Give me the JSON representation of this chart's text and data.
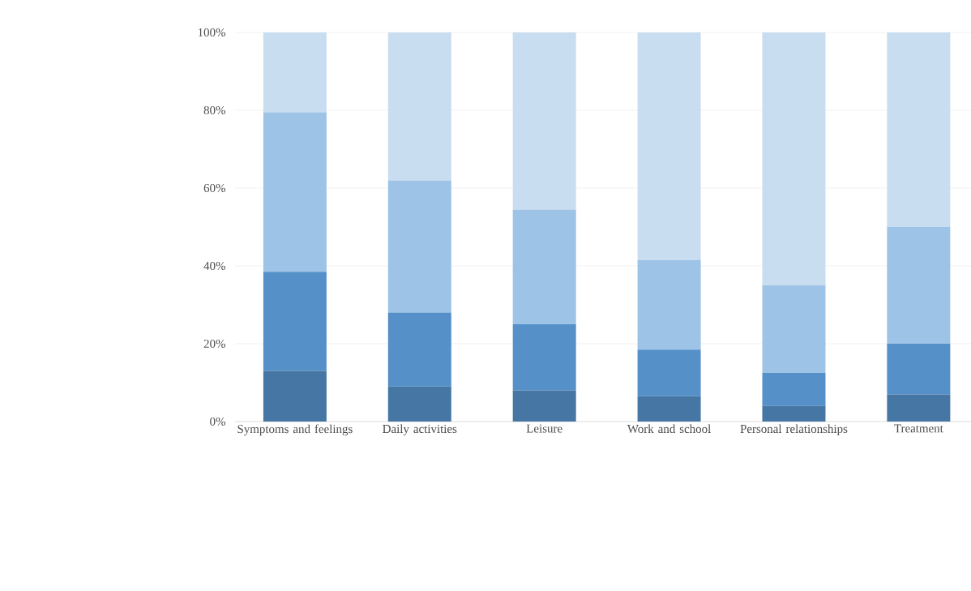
{
  "chart_data": {
    "type": "bar",
    "stacked": true,
    "categories": [
      "Symptoms and feelings",
      "Daily activities",
      "Leisure",
      "Work and school",
      "Personal relationships",
      "Treatment"
    ],
    "series": [
      {
        "color": "#4677a4",
        "values": [
          13,
          9,
          8,
          6.5,
          4,
          7
        ]
      },
      {
        "color": "#5590c8",
        "values": [
          25.5,
          19,
          17,
          12,
          8.5,
          13
        ]
      },
      {
        "color": "#9dc3e6",
        "values": [
          41,
          34,
          29.5,
          23,
          22.5,
          30
        ]
      },
      {
        "color": "#c9ddf0",
        "values": [
          20.5,
          38,
          45.5,
          58.5,
          65,
          50
        ]
      }
    ],
    "ylim": [
      0,
      100
    ],
    "yticks": [
      {
        "value": 0,
        "label": "0%"
      },
      {
        "value": 20,
        "label": "20%"
      },
      {
        "value": 40,
        "label": "40%"
      },
      {
        "value": 60,
        "label": "60%"
      },
      {
        "value": 80,
        "label": "80%"
      },
      {
        "value": 100,
        "label": "100%"
      }
    ],
    "grid": "y"
  }
}
